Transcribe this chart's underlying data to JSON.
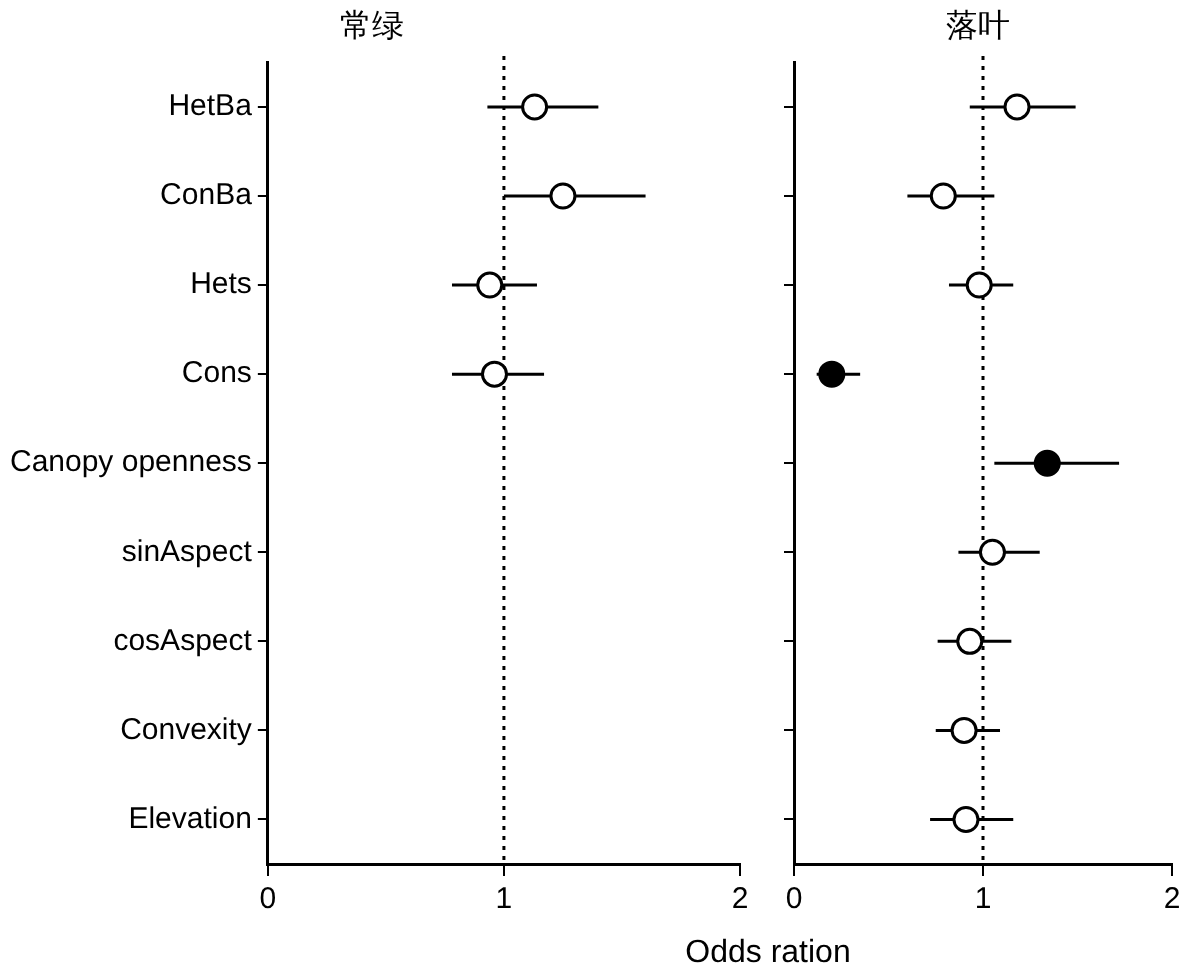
{
  "chart_data": [
    {
      "type": "scatter",
      "title": "常绿",
      "orientation": "horizontal",
      "categories": [
        "HetBa",
        "ConBa",
        "Hets",
        "Cons",
        "Canopy openness",
        "sinAspect",
        "cosAspect",
        "Convexity",
        "Elevation"
      ],
      "xlim": [
        0,
        2
      ],
      "xticks": [
        0,
        1,
        2
      ],
      "marker": "circle",
      "grid": false,
      "legend": false,
      "series": [
        {
          "color": "#ffffff",
          "values": [
            1.13,
            1.25,
            0.94,
            0.96,
            null,
            null,
            null,
            null,
            null
          ],
          "errors": [
            [
              0.93,
              1.4
            ],
            [
              1.0,
              1.6
            ],
            [
              0.78,
              1.14
            ],
            [
              0.78,
              1.17
            ],
            null,
            null,
            null,
            null,
            null
          ]
        }
      ],
      "ref_lines": [
        {
          "axis": "x",
          "value": 1,
          "line_style": "dotted",
          "color": "#000000"
        }
      ]
    },
    {
      "type": "scatter",
      "title": "落叶",
      "xlabel": "Odds ration",
      "orientation": "horizontal",
      "categories": [
        null,
        null,
        null,
        null,
        null,
        null,
        null,
        null,
        null
      ],
      "xlim": [
        0,
        2
      ],
      "xticks": [
        0,
        1,
        2
      ],
      "tick_labels": "x",
      "marker": "circle",
      "grid": false,
      "legend": false,
      "series": [
        {
          "color": "#ffffff",
          "values": [
            1.18,
            0.79,
            0.98,
            null,
            null,
            1.05,
            0.93,
            0.9,
            0.91
          ],
          "errors": [
            [
              0.93,
              1.49
            ],
            [
              0.6,
              1.06
            ],
            [
              0.82,
              1.16
            ],
            null,
            null,
            [
              0.87,
              1.3
            ],
            [
              0.76,
              1.15
            ],
            [
              0.75,
              1.09
            ],
            [
              0.72,
              1.16
            ]
          ]
        },
        {
          "color": "#000000",
          "values": [
            null,
            null,
            null,
            0.2,
            1.34,
            null,
            null,
            null,
            null
          ],
          "errors": [
            null,
            null,
            null,
            [
              0.12,
              0.35
            ],
            [
              1.06,
              1.72
            ],
            null,
            null,
            null,
            null
          ]
        }
      ],
      "ref_lines": [
        {
          "axis": "x",
          "value": 1,
          "line_style": "dotted",
          "color": "#000000"
        }
      ]
    }
  ]
}
